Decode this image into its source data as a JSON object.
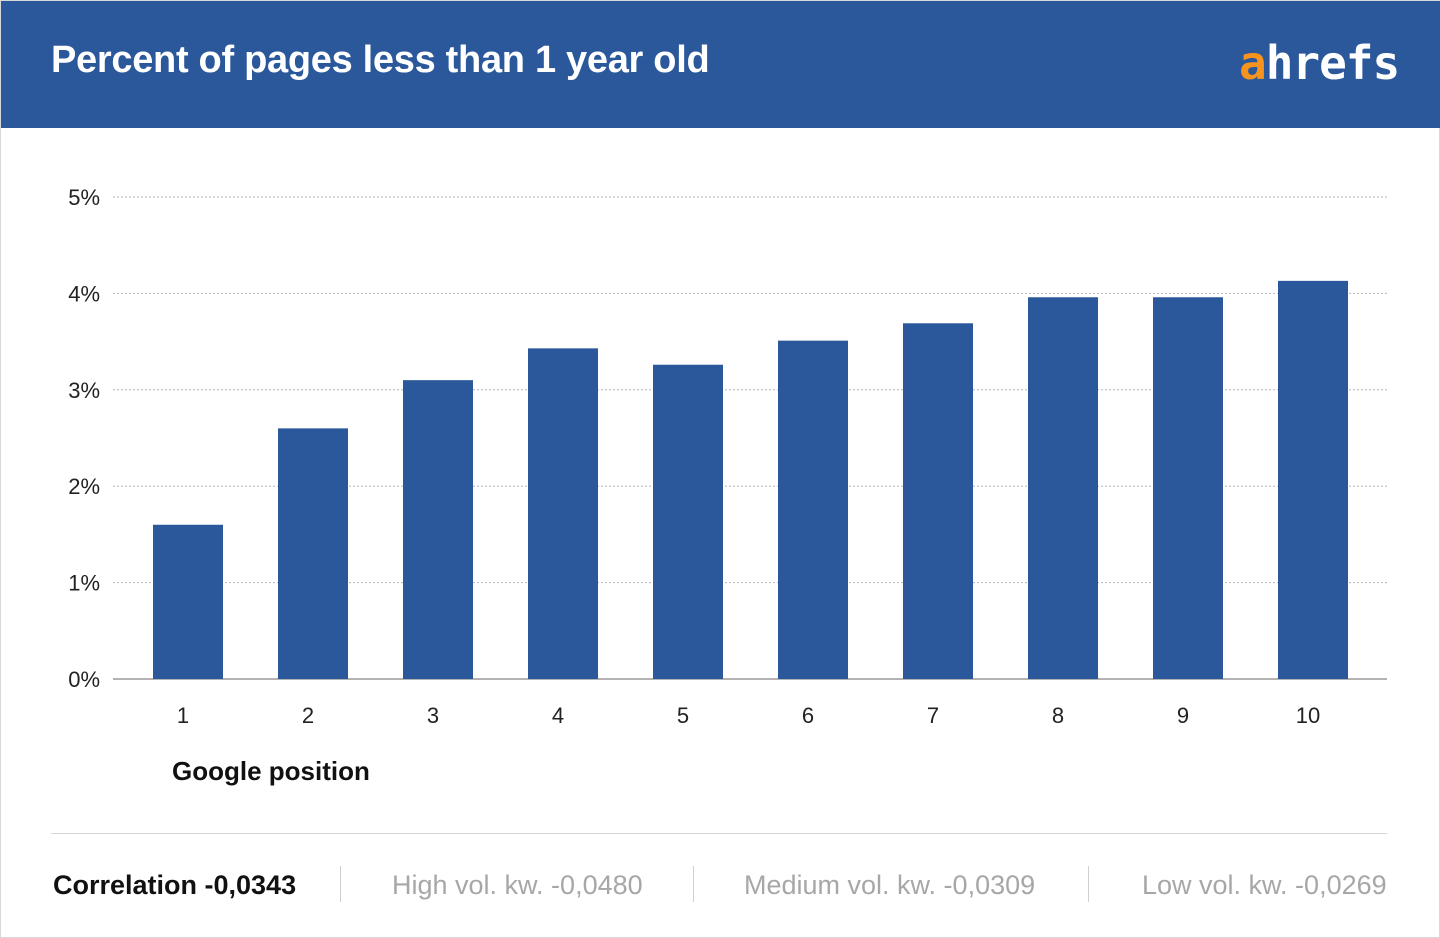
{
  "header": {
    "title": "Percent of pages less than 1 year old",
    "logo_accent": "a",
    "logo_rest": "hrefs"
  },
  "colors": {
    "header_bg": "#2a589b",
    "bar": "#2a589b",
    "logo_accent": "#f7941d",
    "grid": "#b5b5b5",
    "muted_text": "#a7a7a7"
  },
  "chart_data": {
    "type": "bar",
    "categories": [
      "1",
      "2",
      "3",
      "4",
      "5",
      "6",
      "7",
      "8",
      "9",
      "10"
    ],
    "values": [
      1.6,
      2.6,
      3.1,
      3.43,
      3.26,
      3.51,
      3.69,
      3.96,
      3.96,
      4.13
    ],
    "xlabel": "Google position",
    "ylabel": "",
    "ylim": [
      0,
      5
    ],
    "yticks": [
      "0%",
      "1%",
      "2%",
      "3%",
      "4%",
      "5%"
    ],
    "grid": true
  },
  "footer": {
    "correlation": "Correlation -0,0343",
    "high": "High vol. kw. -0,0480",
    "medium": "Medium vol. kw. -0,0309",
    "low": "Low vol. kw. -0,0269"
  }
}
